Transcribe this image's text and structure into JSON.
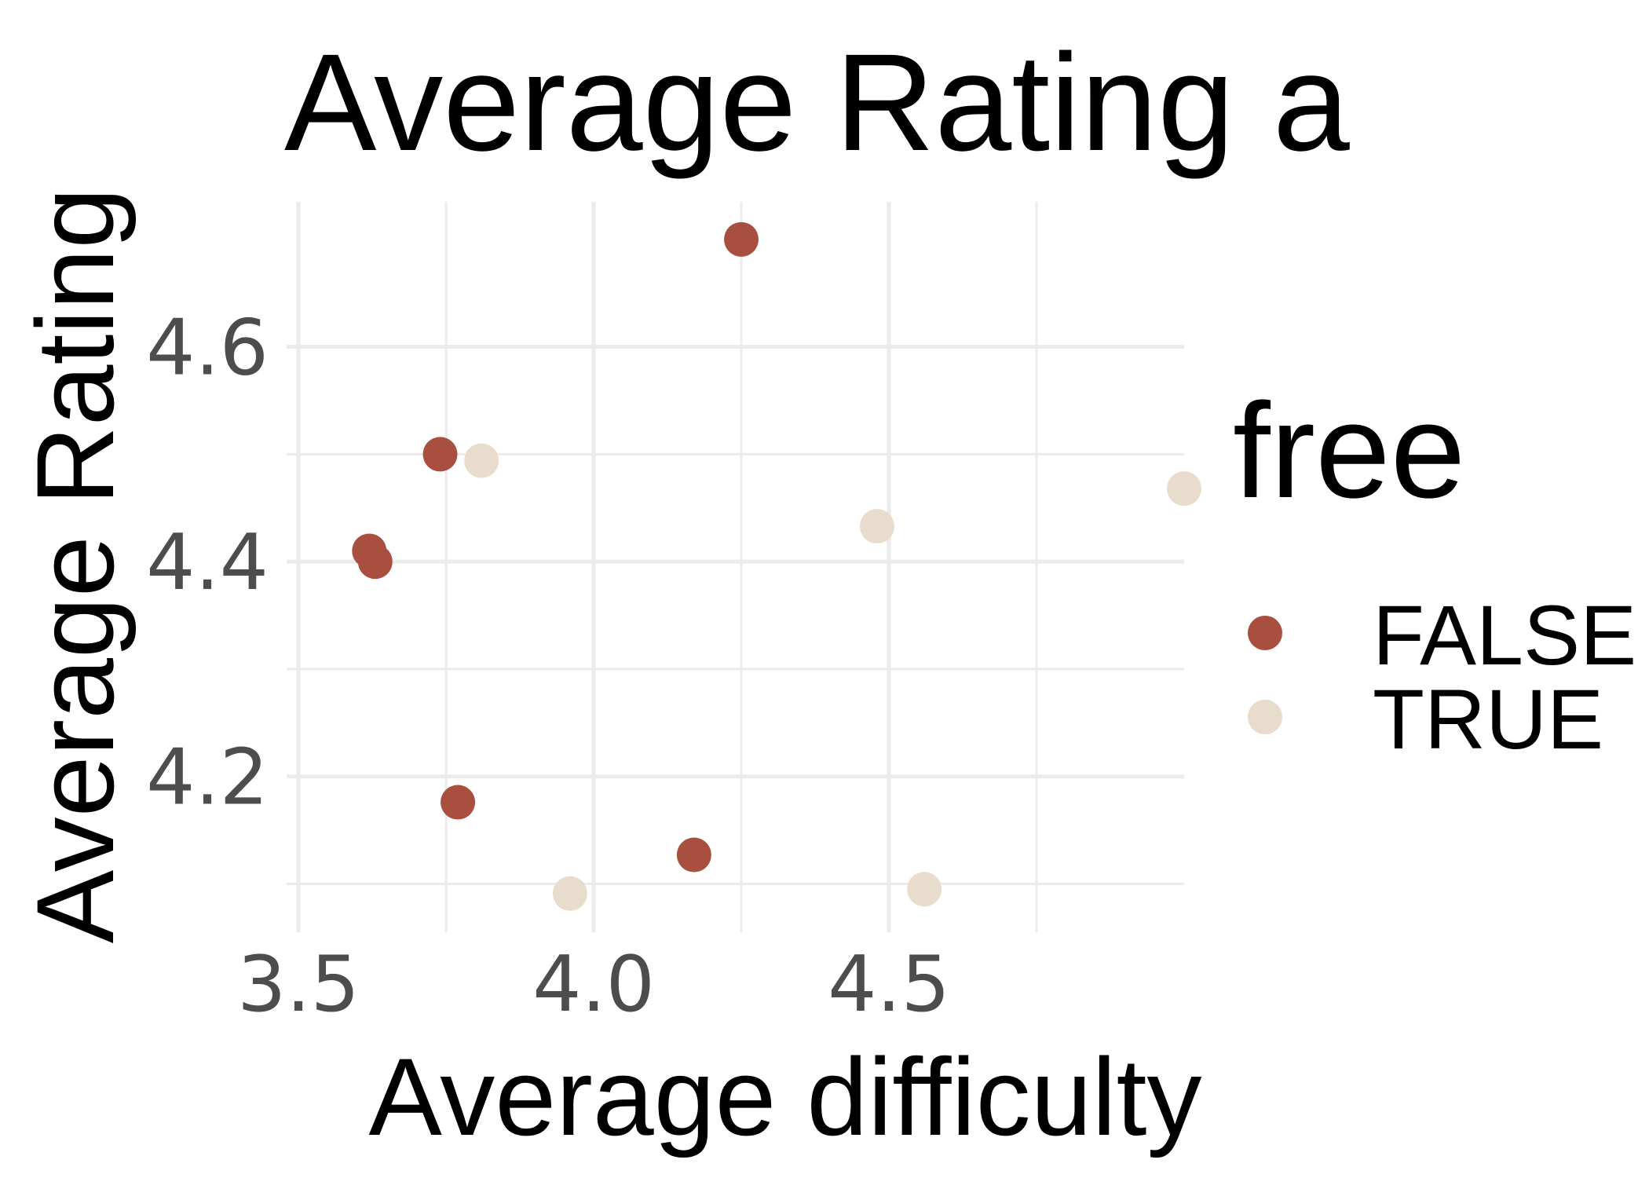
{
  "chart_data": {
    "type": "scatter",
    "title": "Average Rating a",
    "xlabel": "Average difficulty",
    "ylabel": "Average Rating",
    "xlim": [
      3.48,
      5.0
    ],
    "ylim": [
      4.055,
      4.735
    ],
    "x_major_ticks": [
      3.5,
      4.0,
      4.5
    ],
    "x_tick_labels": [
      "3.5",
      "4.0",
      "4.5"
    ],
    "x_minor_ticks": [
      3.75,
      4.25,
      4.75
    ],
    "y_major_ticks": [
      4.2,
      4.4,
      4.6
    ],
    "y_tick_labels": [
      "4.2",
      "4.4",
      "4.6"
    ],
    "y_minor_ticks": [
      4.1,
      4.3,
      4.5
    ],
    "grid": true,
    "legend": {
      "title": "free",
      "position": "right",
      "entries": [
        {
          "label": "FALSE",
          "color": "#a94f40"
        },
        {
          "label": "TRUE",
          "color": "#e8dccd"
        }
      ]
    },
    "series": [
      {
        "name": "FALSE",
        "color": "#a94f40",
        "points": [
          {
            "x": 4.25,
            "y": 4.7
          },
          {
            "x": 3.74,
            "y": 4.5
          },
          {
            "x": 3.62,
            "y": 4.41
          },
          {
            "x": 3.63,
            "y": 4.4
          },
          {
            "x": 3.77,
            "y": 4.176
          },
          {
            "x": 4.17,
            "y": 4.127
          }
        ]
      },
      {
        "name": "TRUE",
        "color": "#e8dccd",
        "points": [
          {
            "x": 3.81,
            "y": 4.494
          },
          {
            "x": 4.48,
            "y": 4.433
          },
          {
            "x": 5.0,
            "y": 4.468
          },
          {
            "x": 3.96,
            "y": 4.091
          },
          {
            "x": 4.56,
            "y": 4.095
          }
        ]
      }
    ]
  }
}
